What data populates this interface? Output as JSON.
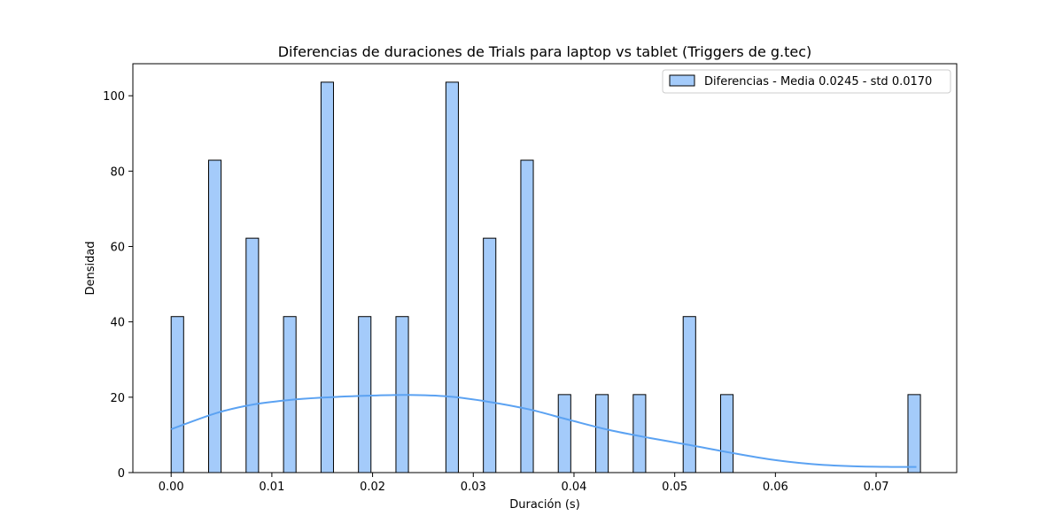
{
  "chart_data": {
    "type": "bar",
    "title": "Diferencias de duraciones de Trials para laptop vs tablet (Triggers de g.tec)",
    "xlabel": "Duración (s)",
    "ylabel": "Densidad",
    "xlim": [
      -0.0038,
      0.078
    ],
    "ylim": [
      0,
      108.5
    ],
    "xticks": [
      0.0,
      0.01,
      0.02,
      0.03,
      0.04,
      0.05,
      0.06,
      0.07
    ],
    "xtick_labels": [
      "0.00",
      "0.01",
      "0.02",
      "0.03",
      "0.04",
      "0.05",
      "0.06",
      "0.07"
    ],
    "yticks": [
      0,
      20,
      40,
      60,
      80,
      100
    ],
    "ytick_labels": [
      "0",
      "20",
      "40",
      "60",
      "80",
      "100"
    ],
    "bin_width": 0.00124,
    "bins": [
      {
        "x": 0.0,
        "y": 41.4
      },
      {
        "x": 0.00372,
        "y": 82.9
      },
      {
        "x": 0.00744,
        "y": 62.2
      },
      {
        "x": 0.01116,
        "y": 41.4
      },
      {
        "x": 0.01488,
        "y": 103.6
      },
      {
        "x": 0.0186,
        "y": 41.4
      },
      {
        "x": 0.02232,
        "y": 41.4
      },
      {
        "x": 0.02728,
        "y": 103.6
      },
      {
        "x": 0.031,
        "y": 62.2
      },
      {
        "x": 0.03472,
        "y": 82.9
      },
      {
        "x": 0.03844,
        "y": 20.7
      },
      {
        "x": 0.04216,
        "y": 20.7
      },
      {
        "x": 0.04588,
        "y": 20.7
      },
      {
        "x": 0.05084,
        "y": 41.4
      },
      {
        "x": 0.05456,
        "y": 20.7
      },
      {
        "x": 0.07316,
        "y": 20.7
      }
    ],
    "kde": {
      "x": [
        0.0,
        0.0045,
        0.008,
        0.0115,
        0.015,
        0.0195,
        0.0235,
        0.0275,
        0.0315,
        0.0355,
        0.0395,
        0.0435,
        0.0475,
        0.0515,
        0.0555,
        0.0595,
        0.0635,
        0.0675,
        0.0715,
        0.074
      ],
      "y": [
        11.5,
        15.8,
        18.0,
        19.2,
        19.9,
        20.4,
        20.6,
        20.2,
        18.8,
        16.8,
        14.0,
        11.3,
        9.2,
        7.3,
        5.3,
        3.5,
        2.3,
        1.7,
        1.5,
        1.5
      ]
    },
    "series": [
      {
        "name": "Diferencias - Media 0.0245 - std 0.0170",
        "color": "#a4cbfa",
        "edge_color": "#000000",
        "line_color": "#5ba2f2"
      }
    ],
    "legend_position": "top-right",
    "grid": false
  }
}
